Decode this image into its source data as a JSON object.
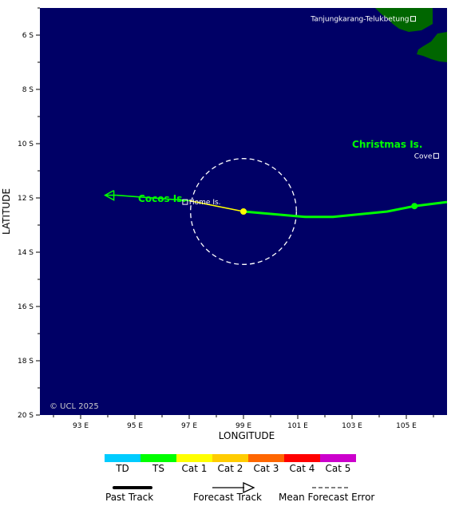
{
  "map": {
    "lon_range": [
      91.5,
      106.5
    ],
    "lat_range": [
      -20,
      -5
    ],
    "xlabel": "LONGITUDE",
    "ylabel": "LATITUDE",
    "lon_ticks": [
      "93 E",
      "95 E",
      "97 E",
      "99 E",
      "101 E",
      "103 E",
      "105 E"
    ],
    "lon_tick_values": [
      93,
      95,
      97,
      99,
      101,
      103,
      105
    ],
    "lat_ticks": [
      "6 S",
      "8 S",
      "10 S",
      "12 S",
      "14 S",
      "16 S",
      "18 S",
      "20 S"
    ],
    "lat_tick_values": [
      -6,
      -8,
      -10,
      -12,
      -14,
      -16,
      -18,
      -20
    ],
    "ocean_color": "#000066",
    "land_color": "#006600",
    "copyright": "© UCL 2025"
  },
  "places": [
    {
      "name": "Tanjungkarang-Telukbetung",
      "lon": 105.25,
      "lat": -5.4
    },
    {
      "name": "Cove",
      "lon": 106.1,
      "lat": -10.45
    },
    {
      "name": "Home Is.",
      "lon": 96.85,
      "lat": -12.15
    }
  ],
  "region_labels": [
    {
      "name": "Christmas Is.",
      "lon": 105.6,
      "lat": -10.0
    },
    {
      "name": "Cocos Is.",
      "lon": 96.0,
      "lat": -12.0
    }
  ],
  "track": {
    "past": [
      {
        "lon": 106.5,
        "lat": -12.15
      },
      {
        "lon": 105.3,
        "lat": -12.3
      },
      {
        "lon": 104.3,
        "lat": -12.5
      },
      {
        "lon": 102.3,
        "lat": -12.7
      },
      {
        "lon": 101.3,
        "lat": -12.7
      },
      {
        "lon": 99.0,
        "lat": -12.5
      }
    ],
    "past_color": "#00ff00",
    "forecast": [
      {
        "lon": 99.0,
        "lat": -12.5,
        "color": "#ffff00"
      },
      {
        "lon": 97.0,
        "lat": -12.1,
        "color": "#00ff00"
      },
      {
        "lon": 94.3,
        "lat": -11.9,
        "color": "#00ff00"
      },
      {
        "lon": 93.9,
        "lat": -11.9,
        "color": "#00ff00"
      }
    ],
    "markers": [
      {
        "lon": 105.3,
        "lat": -12.3,
        "color": "#00ff00"
      },
      {
        "lon": 99.0,
        "lat": -12.5,
        "color": "#ffff00"
      }
    ],
    "error_circle": {
      "lon": 99.0,
      "lat": -12.5,
      "radius_deg": 1.95
    }
  },
  "legend": {
    "categories": [
      {
        "label": "TD",
        "color": "#00ccff"
      },
      {
        "label": "TS",
        "color": "#00ff00"
      },
      {
        "label": "Cat 1",
        "color": "#ffff00"
      },
      {
        "label": "Cat 2",
        "color": "#ffcc00"
      },
      {
        "label": "Cat 3",
        "color": "#ff6600"
      },
      {
        "label": "Cat 4",
        "color": "#ff0000"
      },
      {
        "label": "Cat 5",
        "color": "#cc00cc"
      }
    ],
    "past_track": "Past Track",
    "forecast_track": "Forecast Track",
    "mean_error": "Mean Forecast Error"
  }
}
